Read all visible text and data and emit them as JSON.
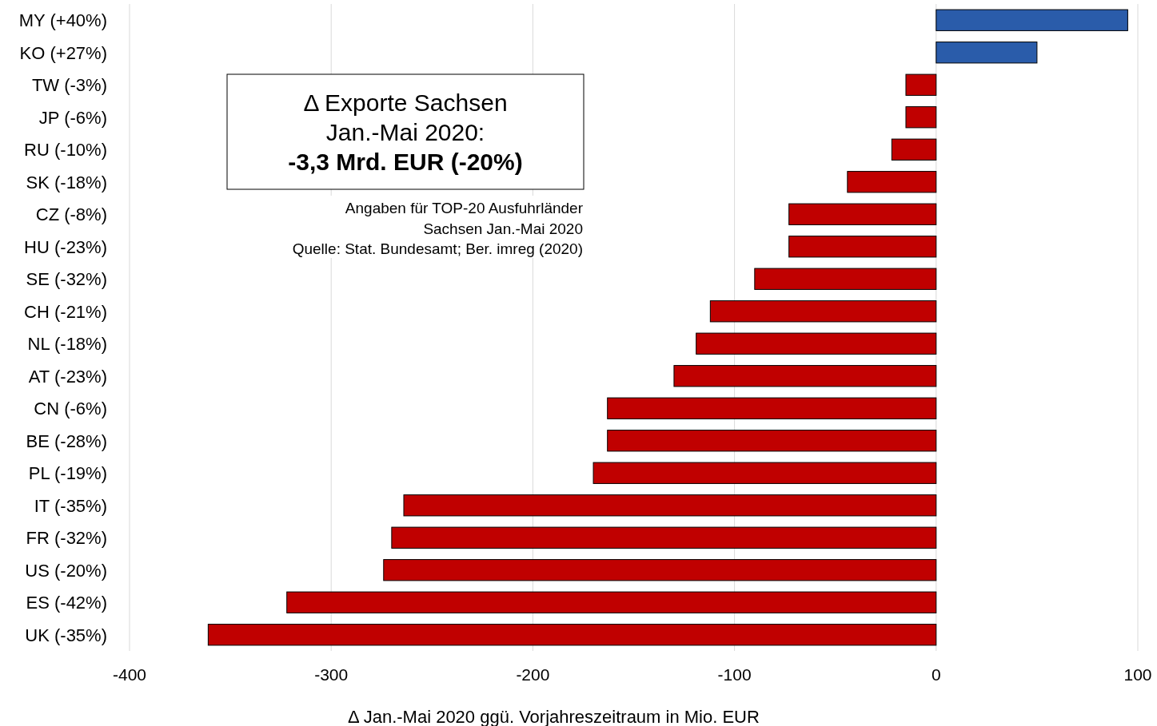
{
  "chart_data": {
    "type": "bar",
    "orientation": "horizontal",
    "title": "Δ Exporte Sachsen Jan.-Mai 2020:",
    "subtitle": "-3,3 Mrd. EUR (-20%)",
    "xlabel": "Δ Jan.-Mai 2020 ggü. Vorjahreszeitraum in Mio. EUR",
    "categories": [
      "MY (+40%)",
      "KO (+27%)",
      "TW (-3%)",
      "JP (-6%)",
      "RU (-10%)",
      "SK (-18%)",
      "CZ (-8%)",
      "HU (-23%)",
      "SE (-32%)",
      "CH (-21%)",
      "NL (-18%)",
      "AT (-23%)",
      "CN (-6%)",
      "BE (-28%)",
      "PL (-19%)",
      "IT (-35%)",
      "FR (-32%)",
      "US (-20%)",
      "ES (-42%)",
      "UK (-35%)"
    ],
    "values": [
      95,
      50,
      -15,
      -15,
      -22,
      -44,
      -73,
      -73,
      -90,
      -112,
      -119,
      -130,
      -163,
      -163,
      -170,
      -264,
      -270,
      -274,
      -322,
      -361
    ],
    "colors": [
      "#2a5caa",
      "#2a5caa",
      "#c00000",
      "#c00000",
      "#c00000",
      "#c00000",
      "#c00000",
      "#c00000",
      "#c00000",
      "#c00000",
      "#c00000",
      "#c00000",
      "#c00000",
      "#c00000",
      "#c00000",
      "#c00000",
      "#c00000",
      "#c00000",
      "#c00000",
      "#c00000"
    ],
    "xlim": [
      -400,
      100
    ],
    "xticks": [
      -400,
      -300,
      -200,
      -100,
      0,
      100
    ],
    "grid": "x",
    "annotations": [
      "Angaben für TOP-20 Ausfuhrländer",
      "Sachsen Jan.-Mai 2020",
      "Quelle: Stat. Bundesamt; Ber. imreg (2020)"
    ]
  }
}
